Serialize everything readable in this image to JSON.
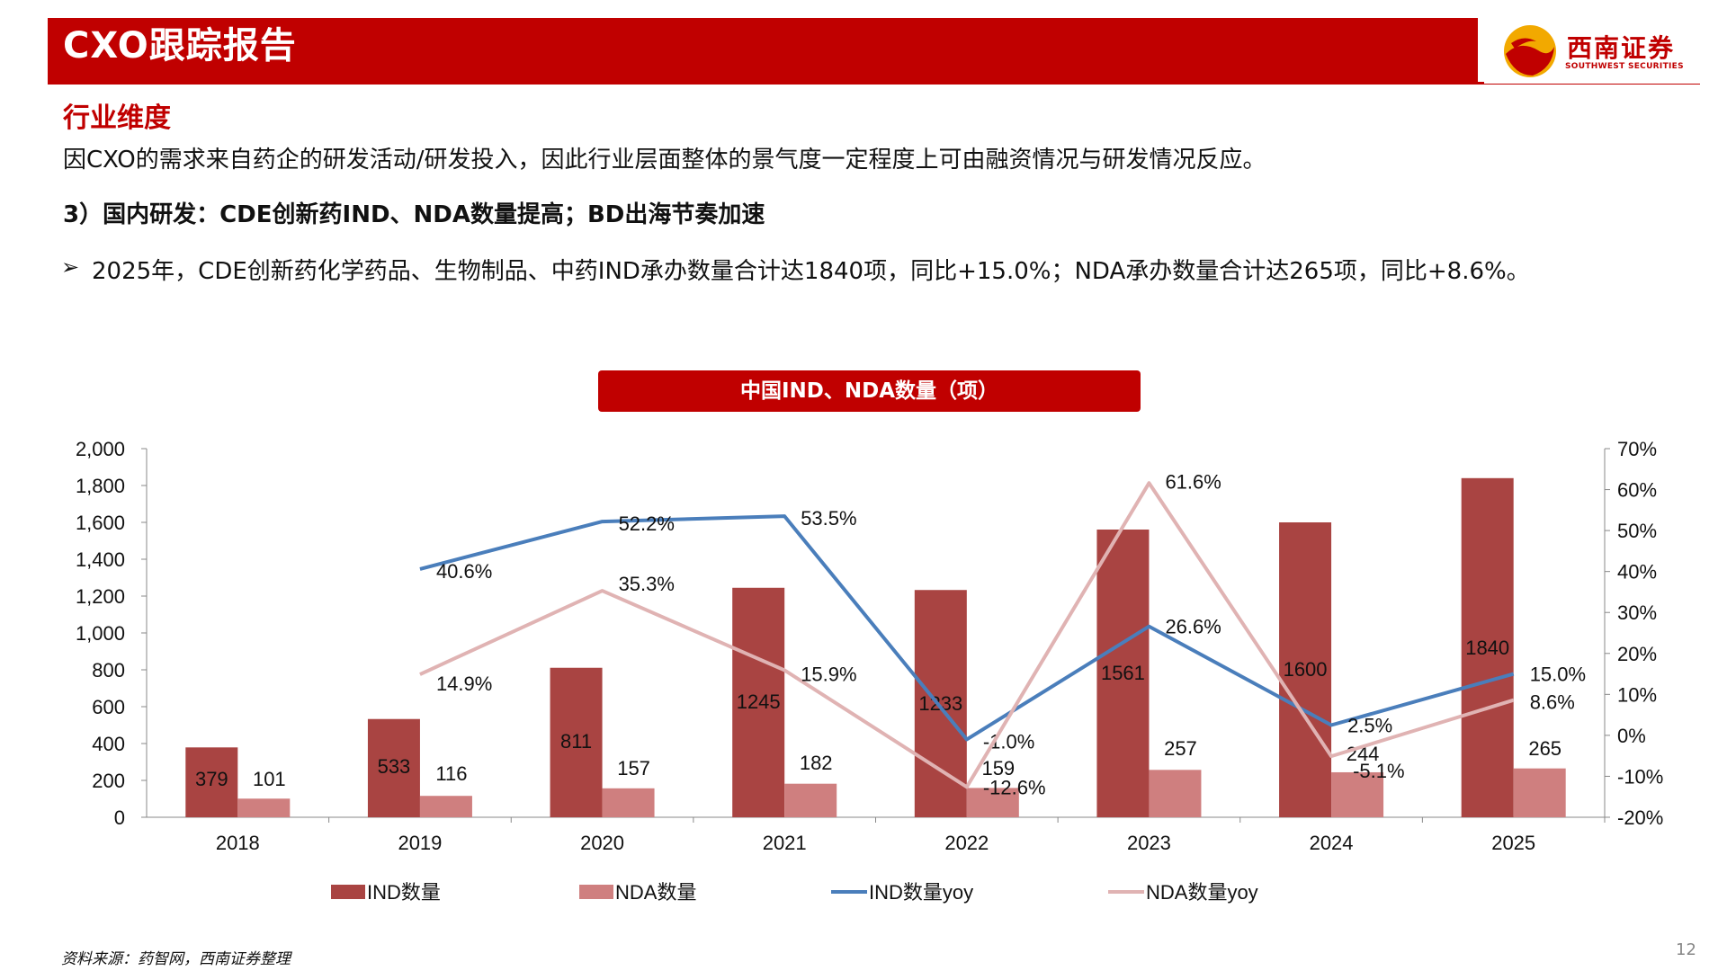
{
  "header": {
    "title": "CXO跟踪报告",
    "logo_name": "西南证券",
    "logo_sub": "SOUTHWEST SECURITIES"
  },
  "section_title": "行业维度",
  "intro_text": "因CXO的需求来自药企的研发活动/研发投入，因此行业层面整体的景气度一定程度上可由融资情况与研发情况反应。",
  "point_title": "3）国内研发：CDE创新药IND、NDA数量提高；BD出海节奏加速",
  "bullet_symbol": "➢",
  "bullet_text": "2025年，CDE创新药化学药品、生物制品、中药IND承办数量合计达1840项，同比+15.0%；NDA承办数量合计达265项，同比+8.6%。",
  "source": "资料来源：药智网，西南证券整理",
  "page_number": "12",
  "colors": {
    "brand_red": "#c00000",
    "ind_bar": "#a94442",
    "nda_bar": "#cf7f7f",
    "ind_yoy_line": "#4a7ebb",
    "nda_yoy_line": "#e0b3b3"
  },
  "chart_data": {
    "type": "bar",
    "title": "中国IND、NDA数量（项）",
    "categories": [
      "2018",
      "2019",
      "2020",
      "2021",
      "2022",
      "2023",
      "2024",
      "2025"
    ],
    "y_left": {
      "ticks": [
        "0",
        "200",
        "400",
        "600",
        "800",
        "1,000",
        "1,200",
        "1,400",
        "1,600",
        "1,800",
        "2,000"
      ],
      "range": [
        0,
        2000
      ]
    },
    "y_right": {
      "ticks": [
        "-20%",
        "-10%",
        "0%",
        "10%",
        "20%",
        "30%",
        "40%",
        "50%",
        "60%",
        "70%"
      ],
      "range": [
        -20,
        70
      ]
    },
    "series": [
      {
        "name": "IND数量",
        "type": "bar",
        "axis": "left",
        "values": [
          379,
          533,
          811,
          1245,
          1233,
          1561,
          1600,
          1840
        ]
      },
      {
        "name": "NDA数量",
        "type": "bar",
        "axis": "left",
        "values": [
          101,
          116,
          157,
          182,
          159,
          257,
          244,
          265
        ]
      },
      {
        "name": "IND数量yoy",
        "type": "line",
        "axis": "right",
        "values": [
          null,
          40.6,
          52.2,
          53.5,
          -1.0,
          26.6,
          2.5,
          15.0
        ],
        "labels": [
          "",
          "40.6%",
          "52.2%",
          "53.5%",
          "-1.0%",
          "26.6%",
          "2.5%",
          "15.0%"
        ]
      },
      {
        "name": "NDA数量yoy",
        "type": "line",
        "axis": "right",
        "values": [
          null,
          14.9,
          35.3,
          15.9,
          -12.6,
          61.6,
          -5.1,
          8.6
        ],
        "labels": [
          "",
          "14.9%",
          "35.3%",
          "15.9%",
          "-12.6%",
          "61.6%",
          "-5.1%",
          "8.6%"
        ]
      }
    ],
    "legend_position": "bottom",
    "grid": false
  }
}
